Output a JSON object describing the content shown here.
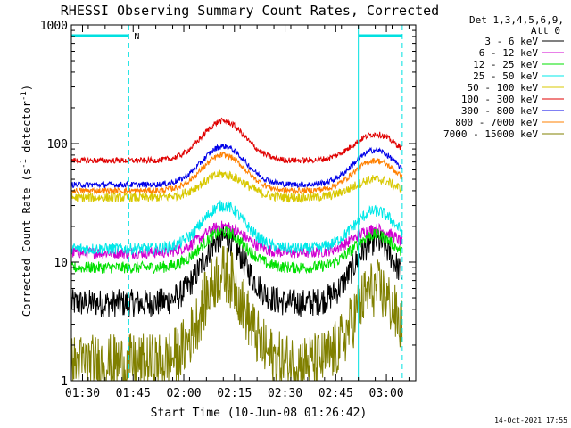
{
  "chart_data": {
    "type": "line",
    "title": "RHESSI Observing Summary Count Rates, Corrected",
    "xlabel": "Start Time (10-Jun-08 01:26:42)",
    "ylabel": "Corrected Count Rate (s",
    "ylabel_sup1": "-1",
    "ylabel_mid": " detector",
    "ylabel_sup2": "-1",
    "ylabel_end": ")",
    "footer": "14-Oct-2021 17:55",
    "y_scale": "log",
    "ylim": [
      1,
      1000
    ],
    "xlim_minutes_after_0126": [
      0,
      102
    ],
    "x_ticks": [
      "01:30",
      "01:45",
      "02:00",
      "02:15",
      "02:30",
      "02:45",
      "03:00"
    ],
    "x_tick_minutes": [
      3.3,
      18.3,
      33.3,
      48.3,
      63.3,
      78.3,
      93.3
    ],
    "y_ticks": [
      "1",
      "10",
      "100",
      "1000"
    ],
    "y_tick_values": [
      1,
      10,
      100,
      1000
    ],
    "legend_header": [
      "Det 1,3,4,5,6,9,",
      "Att 0"
    ],
    "legend_position": "right",
    "night_marker_label": "N",
    "series": [
      {
        "name": "3 - 6 keV",
        "color": "#000000",
        "base": 4.5,
        "peak1": 16,
        "peak2": 15,
        "noise": 0.12
      },
      {
        "name": "6 - 12 keV",
        "color": "#d000d0",
        "base": 12,
        "peak1": 20,
        "peak2": 19,
        "noise": 0.05
      },
      {
        "name": "12 - 25 keV",
        "color": "#00e000",
        "base": 9,
        "peak1": 18,
        "peak2": 17,
        "noise": 0.05
      },
      {
        "name": "25 - 50 keV",
        "color": "#00e8e8",
        "base": 13,
        "peak1": 30,
        "peak2": 27,
        "noise": 0.05
      },
      {
        "name": "50 - 100 keV",
        "color": "#d8c800",
        "base": 35,
        "peak1": 55,
        "peak2": 50,
        "noise": 0.04
      },
      {
        "name": "100 - 300 keV",
        "color": "#e00000",
        "base": 72,
        "peak1": 155,
        "peak2": 120,
        "noise": 0.025
      },
      {
        "name": "300 - 800 keV",
        "color": "#0000e8",
        "base": 45,
        "peak1": 95,
        "peak2": 88,
        "noise": 0.025
      },
      {
        "name": "800 - 7000 keV",
        "color": "#ff8000",
        "base": 40,
        "peak1": 80,
        "peak2": 72,
        "noise": 0.025
      },
      {
        "name": "7000 - 15000 keV",
        "color": "#808000",
        "base": 1.4,
        "peak1": 8,
        "peak2": 6,
        "noise": 0.25
      }
    ],
    "peak1_center_minutes": 45,
    "peak2_center_minutes": 90,
    "peak_width_minutes": 9,
    "shaded_intervals_minutes": [
      [
        0,
        17
      ],
      [
        85,
        98
      ]
    ],
    "vertical_lines": [
      {
        "minutes": 0,
        "style": "solid"
      },
      {
        "minutes": 17,
        "style": "dashed"
      },
      {
        "minutes": 85,
        "style": "solid"
      },
      {
        "minutes": 98,
        "style": "dashed"
      }
    ],
    "top_bars": [
      [
        0,
        17
      ],
      [
        85,
        98
      ]
    ],
    "marker_color": "#00e0e0"
  }
}
